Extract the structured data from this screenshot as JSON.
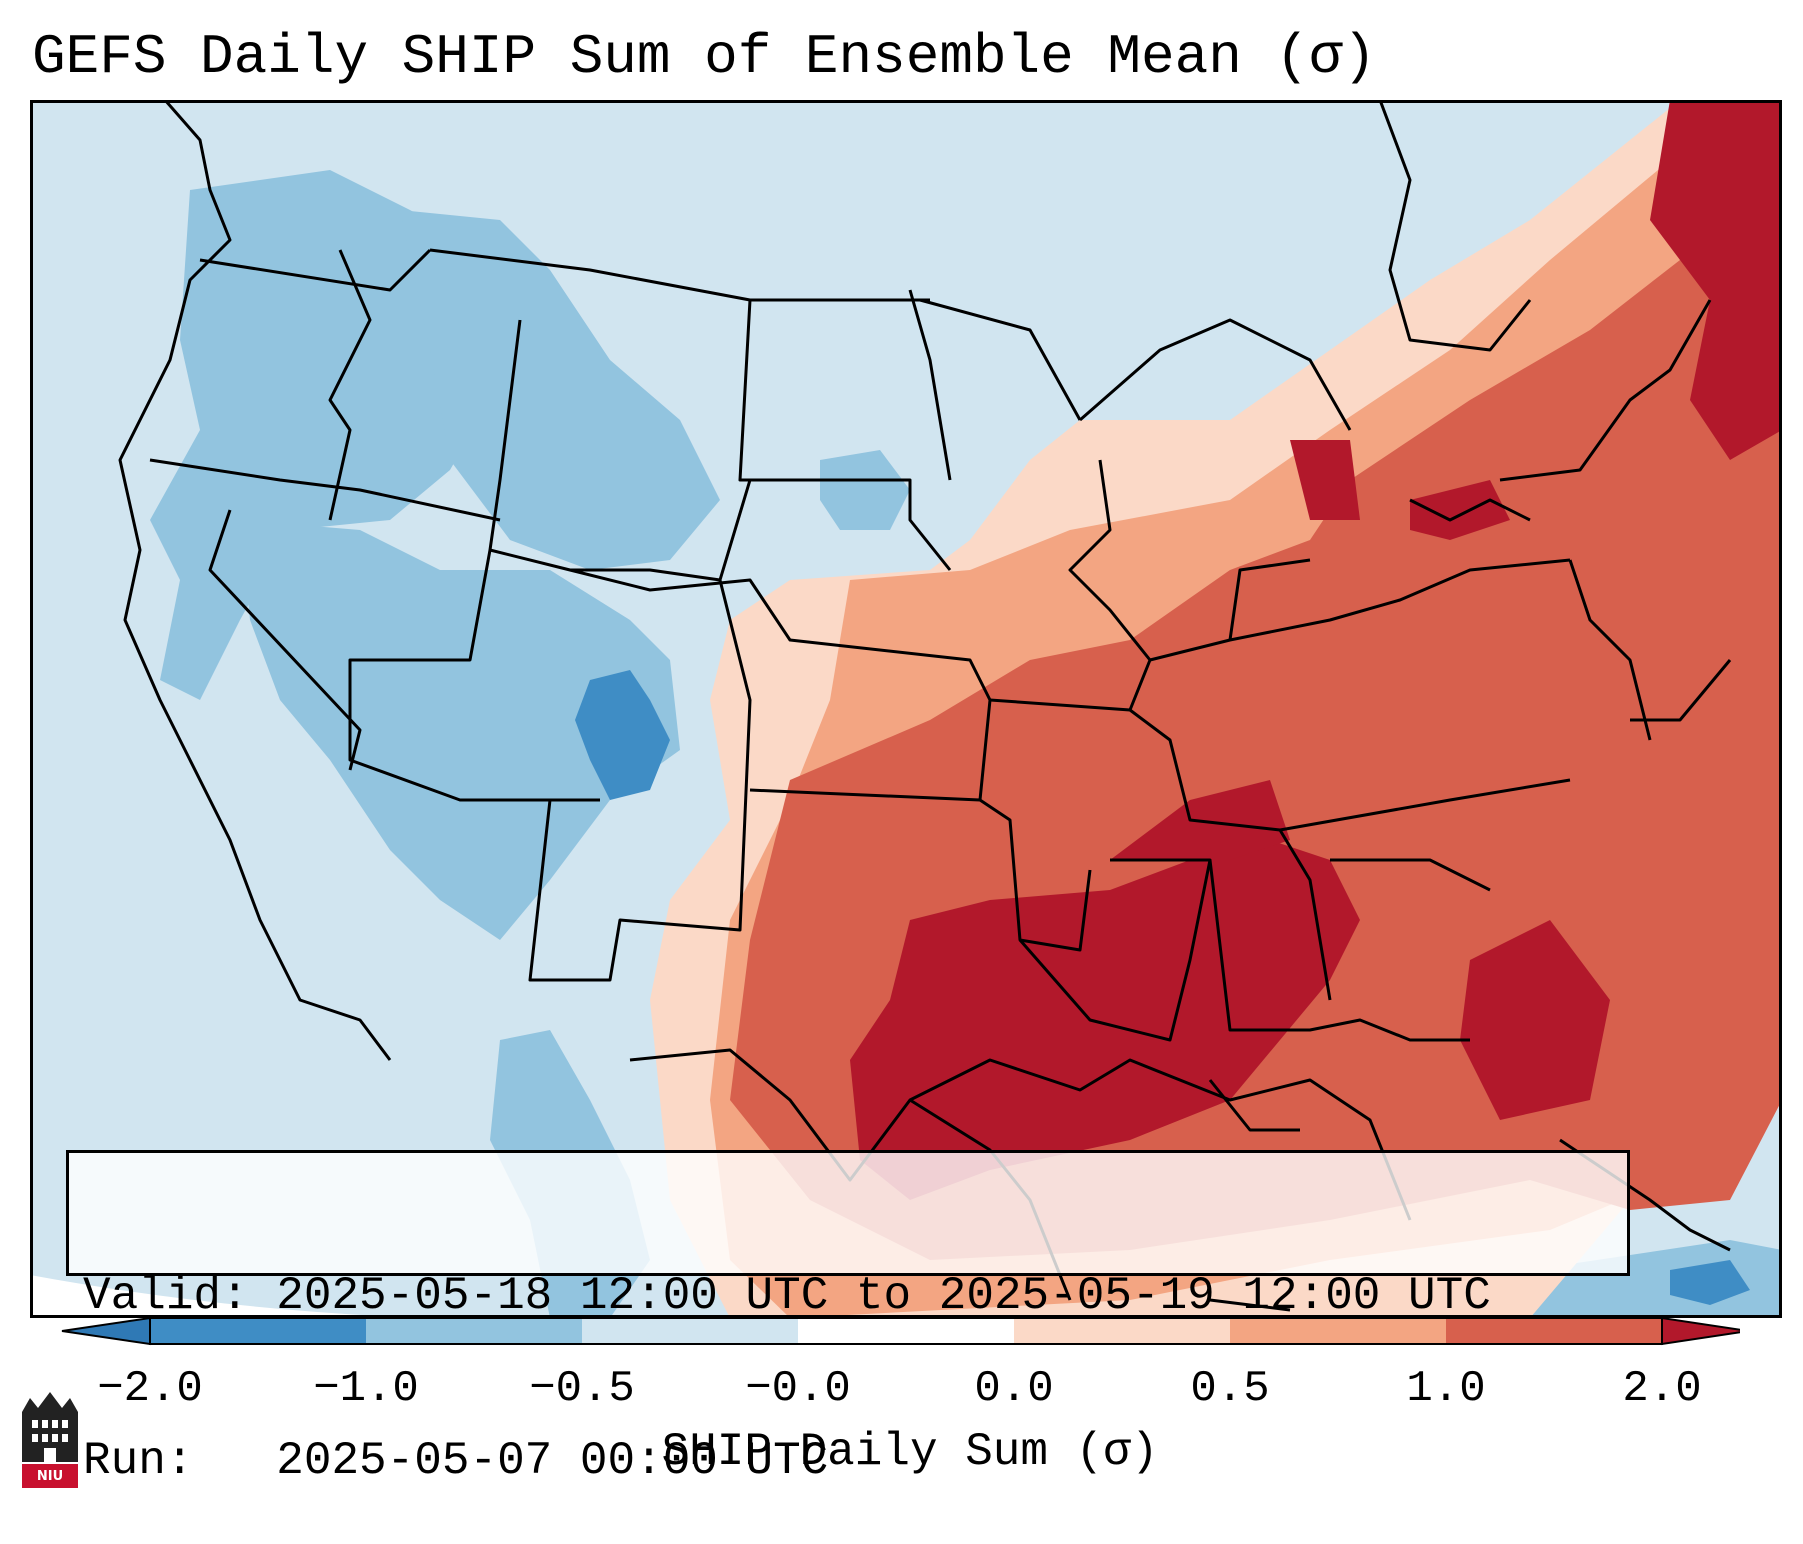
{
  "title": "GEFS Daily SHIP Sum of Ensemble Mean (σ)",
  "info": {
    "valid": "Valid: 2025-05-18 12:00 UTC to 2025-05-19 12:00 UTC",
    "run": "Run:   2025-05-07 00:00 UTC"
  },
  "colorbar": {
    "label": "SHIP Daily Sum (σ)",
    "ticks": [
      "−2.0",
      "−1.0",
      "−0.5",
      "−0.0",
      "0.0",
      "0.5",
      "1.0",
      "2.0"
    ],
    "colors": [
      "#3f8dc5",
      "#92c4df",
      "#d1e5f0",
      "#ffffff",
      "#fbd9c7",
      "#f3a582",
      "#d7604d",
      "#b2182b"
    ],
    "under_color": "#2f79b5",
    "over_color": "#b2182b"
  },
  "map_colors": {
    "ocean": "#d1e5f0",
    "blue_dark": "#3f8dc5",
    "blue_mid": "#92c4df",
    "red_light": "#fbd9c7",
    "red_mid": "#f3a582",
    "red_strong": "#d7604d",
    "red_dark": "#b2182b"
  },
  "logo": {
    "text": "NIU",
    "color": "#c8102e"
  }
}
